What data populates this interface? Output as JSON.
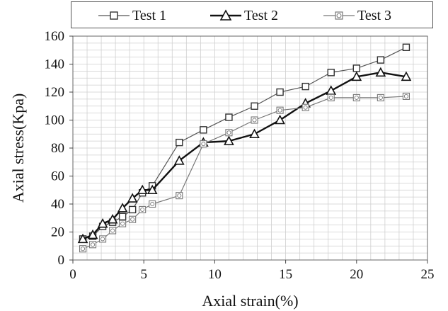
{
  "chart_data": {
    "type": "line",
    "xlabel": "Axial strain(%)",
    "ylabel": "Axial stress(Kpa)",
    "xlim": [
      0,
      25
    ],
    "ylim": [
      0,
      160
    ],
    "xticks": [
      0,
      5,
      10,
      15,
      20,
      25
    ],
    "yticks": [
      0,
      20,
      40,
      60,
      80,
      100,
      120,
      140,
      160
    ],
    "grid": true,
    "legend_position": "top",
    "series": [
      {
        "name": "Test 1",
        "marker": "square",
        "line_color": "#555555",
        "line_width_style": "thin",
        "x": [
          0.7,
          1.4,
          2.1,
          2.8,
          3.5,
          4.2,
          4.9,
          5.6,
          7.5,
          9.2,
          11,
          12.8,
          14.6,
          16.4,
          18.2,
          20,
          21.7,
          23.5
        ],
        "y": [
          15,
          17,
          24,
          27,
          31,
          36,
          48,
          53,
          84,
          93,
          102,
          110,
          120,
          124,
          134,
          137,
          143,
          152
        ]
      },
      {
        "name": "Test 2",
        "marker": "triangle",
        "line_color": "#111111",
        "line_width_style": "thick",
        "x": [
          0.7,
          1.4,
          2.1,
          2.8,
          3.5,
          4.2,
          4.9,
          5.6,
          7.5,
          9.2,
          11,
          12.8,
          14.6,
          16.4,
          18.2,
          20,
          21.7,
          23.5
        ],
        "y": [
          15,
          18,
          26,
          29,
          37,
          44,
          50,
          50,
          71,
          84,
          85,
          90,
          100,
          112,
          121,
          131,
          134,
          131
        ]
      },
      {
        "name": "Test 3",
        "marker": "circle-square",
        "line_color": "#777777",
        "line_width_style": "thin",
        "x": [
          0.7,
          1.4,
          2.1,
          2.8,
          3.5,
          4.2,
          4.9,
          5.6,
          7.5,
          9.2,
          11,
          12.8,
          14.6,
          16.4,
          18.2,
          20,
          21.7,
          23.5
        ],
        "y": [
          8,
          11,
          15,
          21,
          26,
          29,
          36,
          40,
          46,
          83,
          91,
          100,
          107,
          109,
          116,
          116,
          116,
          117
        ]
      }
    ]
  }
}
